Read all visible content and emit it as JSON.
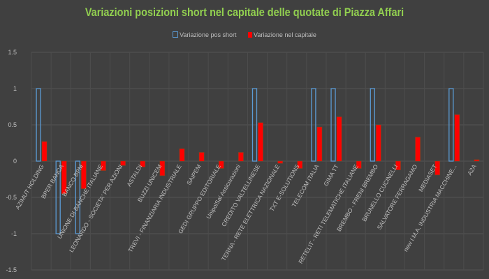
{
  "chart_data": {
    "type": "bar",
    "title": "Variazioni posizioni short nel capitale delle quotate di Piazza Affari",
    "xlabel": "",
    "ylabel": "",
    "ylim": [
      -1.5,
      1.5
    ],
    "yticks": [
      "1.5",
      "1",
      "0.5",
      "0",
      "-0.5",
      "-1",
      "-1.5"
    ],
    "ytick_values": [
      1.5,
      1,
      0.5,
      0,
      -0.5,
      -1,
      -1.5
    ],
    "legend_position": "top",
    "grid": true,
    "categories": [
      "AZIMUT HOLDING",
      "BPER BANCA",
      "BANCO BPM",
      "UNIONE DI BANCHE ITALIANE",
      "LEONARDO - SOCIETA' PER AZIONI",
      "ASTALDI",
      "BUZZI UNICEM",
      "TREVI - FINANZIARIA INDUSTRIALE",
      "SAIPEM",
      "GEDI GRUPPO EDITORIALE",
      "UnipolSai Assicurazioni",
      "CREDITO VALTELLINESE",
      "TERNA - RETE ELETTRICA NAZIONALE",
      "TXT E-SOLUTIONS",
      "TELECOM ITALIA",
      "GIMA TT",
      "RETELIT - RETI TELEMATICHE ITALIANE",
      "BREMBO - FRENI BREMBO",
      "BRUNELLO CUCINELLI",
      "SALVATORE FERRAGAMO",
      "MEDIASET",
      "new I.M.A. INDUSTRIA MACCHINE...",
      "A2A"
    ],
    "series": [
      {
        "name": "Variazione pos short",
        "color": "#5b9bd5",
        "style": "outline",
        "values": [
          1,
          -1,
          -1,
          0,
          0,
          0,
          0,
          0,
          0,
          0,
          0,
          1,
          0,
          0,
          1,
          1,
          0,
          1,
          0,
          0,
          0,
          1,
          0
        ]
      },
      {
        "name": "Variazione nel capitale",
        "color": "#ff0000",
        "style": "solid",
        "values": [
          0.27,
          -0.45,
          -0.38,
          -0.13,
          -0.06,
          -0.08,
          -0.2,
          0.17,
          0.12,
          -0.1,
          0.12,
          0.53,
          -0.03,
          -0.1,
          0.47,
          0.61,
          -0.1,
          0.5,
          -0.12,
          0.33,
          -0.19,
          0.64,
          0.02
        ]
      }
    ]
  }
}
